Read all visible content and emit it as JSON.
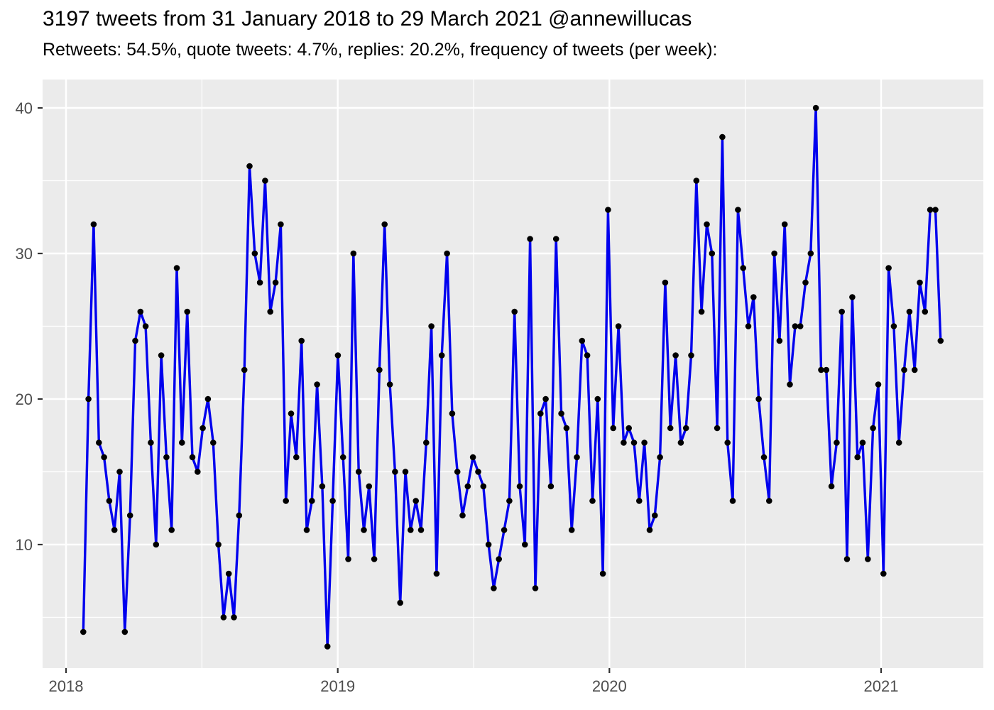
{
  "header": {
    "title": "3197 tweets from 31 January 2018 to 29 March 2021 @annewillucas",
    "subtitle": "Retweets: 54.5%, quote tweets: 4.7%, replies: 20.2%, frequency of tweets (per week):"
  },
  "chart_data": {
    "type": "line",
    "title": "3197 tweets from 31 January 2018 to 29 March 2021 @annewillucas",
    "subtitle": "Retweets: 54.5%, quote tweets: 4.7%, replies: 20.2%, frequency of tweets (per week):",
    "xlabel": "",
    "ylabel": "",
    "x_unit": "week",
    "x_tick_labels": [
      "2018",
      "2019",
      "2020",
      "2021"
    ],
    "y_tick_labels": [
      "40",
      "30",
      "20",
      "10"
    ],
    "y_tick_values": [
      40,
      30,
      20,
      10
    ],
    "y_minor_values": [
      35,
      25,
      15,
      5
    ],
    "ylim": [
      1.5,
      42
    ],
    "grid": true,
    "legend": false,
    "series_name": "tweets per week",
    "values": [
      4,
      20,
      32,
      17,
      16,
      13,
      11,
      15,
      4,
      12,
      24,
      26,
      25,
      17,
      10,
      23,
      16,
      11,
      29,
      17,
      26,
      16,
      15,
      18,
      20,
      17,
      10,
      5,
      8,
      5,
      12,
      22,
      36,
      30,
      28,
      35,
      26,
      28,
      32,
      13,
      19,
      16,
      24,
      11,
      13,
      21,
      14,
      3,
      13,
      23,
      16,
      9,
      30,
      15,
      11,
      14,
      9,
      22,
      32,
      21,
      15,
      6,
      15,
      11,
      13,
      11,
      17,
      25,
      8,
      23,
      30,
      19,
      15,
      12,
      14,
      16,
      15,
      14,
      10,
      7,
      9,
      11,
      13,
      26,
      14,
      10,
      31,
      7,
      19,
      20,
      14,
      31,
      19,
      18,
      11,
      16,
      24,
      23,
      13,
      20,
      8,
      33,
      18,
      25,
      17,
      18,
      17,
      13,
      17,
      11,
      12,
      16,
      28,
      18,
      23,
      17,
      18,
      23,
      35,
      26,
      32,
      30,
      18,
      38,
      17,
      13,
      33,
      29,
      25,
      27,
      20,
      16,
      13,
      30,
      24,
      32,
      21,
      25,
      25,
      28,
      30,
      40,
      22,
      22,
      14,
      17,
      26,
      9,
      27,
      16,
      17,
      9,
      18,
      21,
      8,
      29,
      25,
      17,
      22,
      26,
      22,
      28,
      26,
      33,
      33,
      24
    ],
    "colors": {
      "line": "#0000EE",
      "point": "#000000",
      "panel_background": "#EBEBEB",
      "gridline": "#FFFFFF",
      "axis_text": "#4D4D4D",
      "tick_mark": "#333333"
    }
  }
}
